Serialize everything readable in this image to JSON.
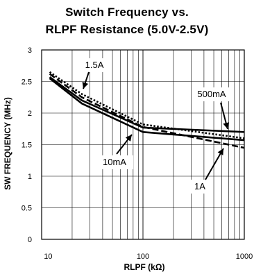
{
  "chart_data": {
    "type": "line",
    "title_line1": "Switch Frequency vs.",
    "title_line2": "RLPF Resistance (5.0V-2.5V)",
    "xlabel": "RLPF (kΩ)",
    "ylabel": "SW FREQUENCY (MHz)",
    "x_scale": "log",
    "xlim": [
      10,
      1000
    ],
    "ylim": [
      0,
      3
    ],
    "x_ticks": [
      {
        "value": 10,
        "label": ""
      },
      {
        "value": 100,
        "label": "100"
      },
      {
        "value": 1000,
        "label": "1000"
      }
    ],
    "x_extra_tick": "10",
    "y_ticks": [
      {
        "value": 0,
        "label": "0"
      },
      {
        "value": 0.5,
        "label": "0.5"
      },
      {
        "value": 1,
        "label": "1"
      },
      {
        "value": 1.5,
        "label": "1.5"
      },
      {
        "value": 2,
        "label": "2"
      },
      {
        "value": 2.5,
        "label": "2.5"
      },
      {
        "value": 3,
        "label": "3"
      }
    ],
    "grid": true,
    "series": [
      {
        "name": "10mA",
        "style": "solid",
        "x": [
          12,
          25,
          100,
          1000
        ],
        "y": [
          2.55,
          2.15,
          1.7,
          1.57
        ]
      },
      {
        "name": "500mA",
        "style": "solid",
        "x": [
          12,
          25,
          100,
          1000
        ],
        "y": [
          2.57,
          2.2,
          1.77,
          1.7
        ]
      },
      {
        "name": "1.5A",
        "style": "dotted",
        "x": [
          12,
          25,
          100,
          1000
        ],
        "y": [
          2.65,
          2.3,
          1.82,
          1.6
        ]
      },
      {
        "name": "1A",
        "style": "dashed",
        "x": [
          12,
          25,
          100,
          1000
        ],
        "y": [
          2.62,
          2.25,
          1.78,
          1.45
        ]
      }
    ],
    "annotations": [
      {
        "label": "1.5A",
        "series": "1.5A"
      },
      {
        "label": "500mA",
        "series": "500mA"
      },
      {
        "label": "10mA",
        "series": "10mA"
      },
      {
        "label": "1A",
        "series": "1A"
      }
    ]
  }
}
